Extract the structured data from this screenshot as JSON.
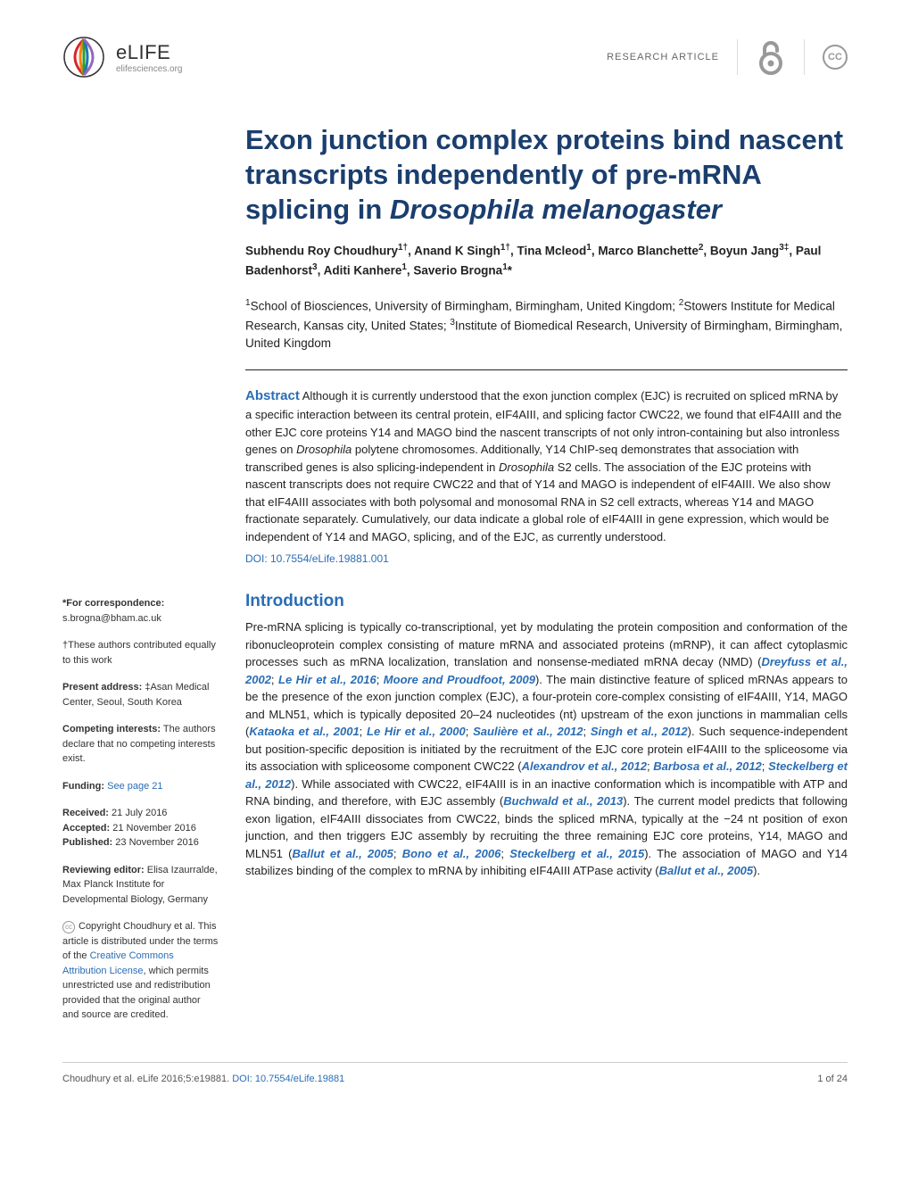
{
  "header": {
    "logo_name": "eLIFE",
    "logo_url": "elifesciences.org",
    "article_type": "RESEARCH ARTICLE",
    "oa_symbol": "∂",
    "cc_symbol": "CC"
  },
  "title": "Exon junction complex proteins bind nascent transcripts independently of pre-mRNA splicing in Drosophila melanogaster",
  "authors_html": "Subhendu Roy Choudhury<sup>1†</sup>, Anand K Singh<sup>1†</sup>, Tina Mcleod<sup>1</sup>, Marco Blanchette<sup>2</sup>, Boyun Jang<sup>3‡</sup>, Paul Badenhorst<sup>3</sup>, Aditi Kanhere<sup>1</sup>, Saverio Brogna<sup>1</sup>*",
  "affiliations_html": "<sup>1</sup>School of Biosciences, University of Birmingham, Birmingham, United Kingdom; <sup>2</sup>Stowers Institute for Medical Research, Kansas city, United States; <sup>3</sup>Institute of Biomedical Research, University of Birmingham, Birmingham, United Kingdom",
  "abstract": {
    "label": "Abstract",
    "text_html": "Although it is currently understood that the exon junction complex (EJC) is recruited on spliced mRNA by a specific interaction between its central protein, eIF4AIII, and splicing factor CWC22, we found that eIF4AIII and the other EJC core proteins Y14 and MAGO bind the nascent transcripts of not only intron-containing but also intronless genes on <em>Drosophila</em> polytene chromosomes. Additionally, Y14 ChIP-seq demonstrates that association with transcribed genes is also splicing-independent in <em>Drosophila</em> S2 cells. The association of the EJC proteins with nascent transcripts does not require CWC22 and that of Y14 and MAGO is independent of eIF4AIII. We also show that eIF4AIII associates with both polysomal and monosomal RNA in S2 cell extracts, whereas Y14 and MAGO fractionate separately. Cumulatively, our data indicate a global role of eIF4AIII in gene expression, which would be independent of Y14 and MAGO, splicing, and of the EJC, as currently understood.",
    "doi": "DOI: 10.7554/eLife.19881.001"
  },
  "sidebar": {
    "correspondence_label": "*For correspondence:",
    "correspondence": "s.brogna@bham.ac.uk",
    "contrib": "†These authors contributed equally to this work",
    "present_label": "Present address:",
    "present": "‡Asan Medical Center, Seoul, South Korea",
    "competing_label": "Competing interests:",
    "competing": "The authors declare that no competing interests exist.",
    "funding_label": "Funding:",
    "funding_link": "See page 21",
    "received_label": "Received:",
    "received": "21 July 2016",
    "accepted_label": "Accepted:",
    "accepted": "21 November 2016",
    "published_label": "Published:",
    "published": "23 November 2016",
    "reviewing_label": "Reviewing editor:",
    "reviewing": "Elisa Izaurralde, Max Planck Institute for Developmental Biology, Germany",
    "copyright_html": "Copyright Choudhury et al. This article is distributed under the terms of the <span class=\"sidebar-link\">Creative Commons Attribution License</span>, which permits unrestricted use and redistribution provided that the original author and source are credited."
  },
  "intro": {
    "heading": "Introduction",
    "text_html": "Pre-mRNA splicing is typically co-transcriptional, yet by modulating the protein composition and conformation of the ribonucleoprotein complex consisting of mature mRNA and associated proteins (mRNP), it can affect cytoplasmic processes such as mRNA localization, translation and nonsense-mediated mRNA decay (NMD) (<span class=\"citation\">Dreyfuss et al., 2002</span>; <span class=\"citation\">Le Hir et al., 2016</span>; <span class=\"citation\">Moore and Proudfoot, 2009</span>). The main distinctive feature of spliced mRNAs appears to be the presence of the exon junction complex (EJC), a four-protein core-complex consisting of eIF4AIII, Y14, MAGO and MLN51, which is typically deposited 20–24 nucleotides (nt) upstream of the exon junctions in mammalian cells (<span class=\"citation\">Kataoka et al., 2001</span>; <span class=\"citation\">Le Hir et al., 2000</span>; <span class=\"citation\">Saulière et al., 2012</span>; <span class=\"citation\">Singh et al., 2012</span>). Such sequence-independent but position-specific deposition is initiated by the recruitment of the EJC core protein eIF4AIII to the spliceosome via its association with spliceosome component CWC22 (<span class=\"citation\">Alexandrov et al., 2012</span>; <span class=\"citation\">Barbosa et al., 2012</span>; <span class=\"citation\">Steckelberg et al., 2012</span>). While associated with CWC22, eIF4AIII is in an inactive conformation which is incompatible with ATP and RNA binding, and therefore, with EJC assembly (<span class=\"citation\">Buchwald et al., 2013</span>). The current model predicts that following exon ligation, eIF4AIII dissociates from CWC22, binds the spliced mRNA, typically at the −24 nt position of exon junction, and then triggers EJC assembly by recruiting the three remaining EJC core proteins, Y14, MAGO and MLN51 (<span class=\"citation\">Ballut et al., 2005</span>; <span class=\"citation\">Bono et al., 2006</span>; <span class=\"citation\">Steckelberg et al., 2015</span>). The association of MAGO and Y14 stabilizes binding of the complex to mRNA by inhibiting eIF4AIII ATPase activity (<span class=\"citation\">Ballut et al., 2005</span>)."
  },
  "footer": {
    "citation": "Choudhury et al. eLife 2016;5:e19881.",
    "doi": "DOI: 10.7554/eLife.19881",
    "page": "1 of 24"
  },
  "colors": {
    "heading": "#1a3e6e",
    "link": "#2a6db5",
    "text": "#222222",
    "muted": "#888888"
  }
}
